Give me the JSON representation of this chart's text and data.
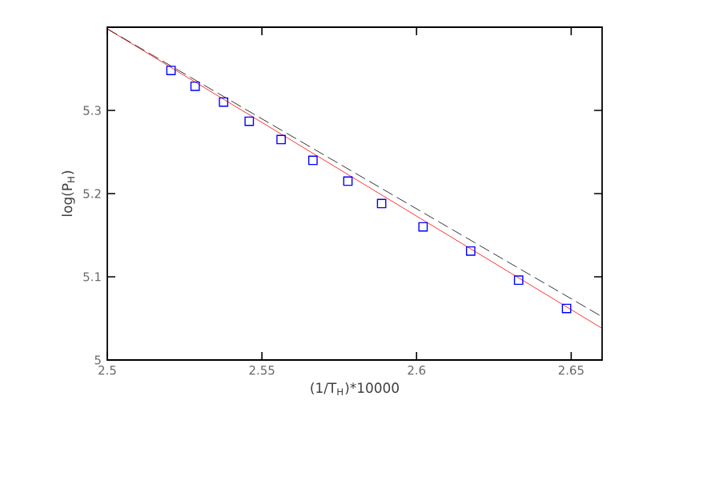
{
  "chart_data": {
    "type": "scatter",
    "xlabel": "(1/T$_{H}$)*10000",
    "ylabel": "log(P$_{H}$)",
    "xlim": [
      2.5,
      2.66
    ],
    "ylim": [
      5,
      5.4
    ],
    "xticks": [
      2.5,
      2.55,
      2.6,
      2.65
    ],
    "yticks": [
      5,
      5.1,
      5.2,
      5.3
    ],
    "series": [
      {
        "type": "line",
        "color": "#ff0000",
        "line_style": "solid",
        "marker": "none",
        "x": [
          2.5,
          2.66
        ],
        "values": [
          5.398,
          5.038
        ]
      },
      {
        "type": "line",
        "color": "#000000",
        "line_style": "dashed",
        "marker": "none",
        "x": [
          2.5,
          2.66
        ],
        "values": [
          5.398,
          5.052
        ]
      },
      {
        "color": "#0000ff",
        "marker": "square",
        "x": [
          2.5206,
          2.5284,
          2.5376,
          2.5459,
          2.5562,
          2.5665,
          2.5778,
          2.5887,
          2.6021,
          2.6175,
          2.633,
          2.6485
        ],
        "values": [
          5.348,
          5.329,
          5.31,
          5.287,
          5.265,
          5.24,
          5.215,
          5.188,
          5.16,
          5.131,
          5.096,
          5.062
        ]
      }
    ]
  }
}
